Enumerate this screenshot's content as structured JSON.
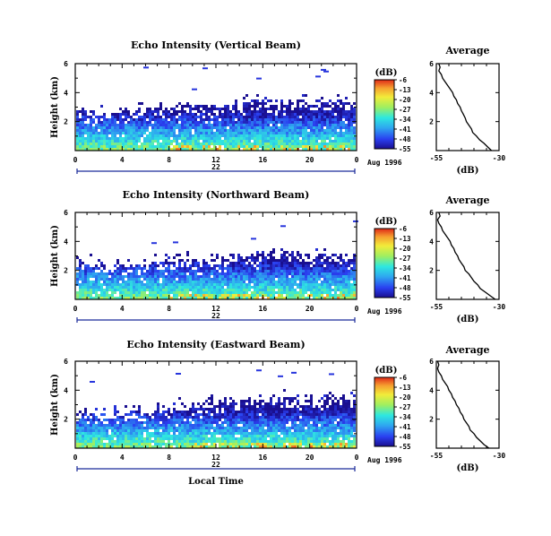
{
  "chart_data": [
    {
      "type": "heatmap",
      "title": "Echo Intensity (Vertical Beam)",
      "ylabel": "Height (km)",
      "yticks": [
        "2",
        "4",
        "6"
      ],
      "xticks": [
        "0",
        "4",
        "8",
        "12",
        "16",
        "20",
        "0"
      ],
      "xlim": [
        0,
        24
      ],
      "ylim": [
        0,
        6
      ],
      "date_label": "22",
      "month_label": "Aug 1996",
      "colorbar": {
        "unit": "(dB)",
        "ticks": [
          "-6",
          "-13",
          "-20",
          "-27",
          "-34",
          "-41",
          "-48",
          "-55"
        ],
        "range": [
          -55,
          -6
        ]
      },
      "echo_top_km": [
        3.0,
        2.9,
        2.7,
        2.6,
        2.8,
        2.9,
        3.0,
        3.1,
        3.0,
        3.1,
        3.2,
        3.3,
        3.1,
        3.0,
        3.2,
        3.3,
        3.4,
        3.3,
        3.4,
        3.5,
        3.4,
        3.3,
        3.5,
        3.4,
        3.5
      ]
    },
    {
      "type": "heatmap",
      "title": "Echo Intensity (Northward Beam)",
      "ylabel": "Height (km)",
      "yticks": [
        "2",
        "4",
        "6"
      ],
      "xticks": [
        "0",
        "4",
        "8",
        "12",
        "16",
        "20",
        "0"
      ],
      "xlim": [
        0,
        24
      ],
      "ylim": [
        0,
        6
      ],
      "date_label": "22",
      "month_label": "Aug 1996",
      "colorbar": {
        "unit": "(dB)",
        "ticks": [
          "-6",
          "-13",
          "-20",
          "-27",
          "-34",
          "-41",
          "-48",
          "-55"
        ],
        "range": [
          -55,
          -6
        ]
      },
      "echo_top_km": [
        2.8,
        2.7,
        2.6,
        2.5,
        2.4,
        2.5,
        2.6,
        2.7,
        2.8,
        2.9,
        2.8,
        2.7,
        2.9,
        3.0,
        2.9,
        3.0,
        3.1,
        3.2,
        3.3,
        3.2,
        3.1,
        3.3,
        3.2,
        3.1,
        3.2
      ]
    },
    {
      "type": "heatmap",
      "title": "Echo Intensity (Eastward Beam)",
      "ylabel": "Height (km)",
      "yticks": [
        "2",
        "4",
        "6"
      ],
      "xticks": [
        "0",
        "4",
        "8",
        "12",
        "16",
        "20",
        "0"
      ],
      "xlim": [
        0,
        24
      ],
      "ylim": [
        0,
        6
      ],
      "date_label": "22",
      "month_label": "Aug 1996",
      "xlabel": "Local Time",
      "colorbar": {
        "unit": "(dB)",
        "ticks": [
          "-6",
          "-13",
          "-20",
          "-27",
          "-34",
          "-41",
          "-48",
          "-55"
        ],
        "range": [
          -55,
          -6
        ]
      },
      "echo_top_km": [
        2.6,
        2.5,
        2.4,
        2.5,
        2.4,
        2.5,
        2.6,
        2.7,
        2.8,
        2.9,
        3.0,
        3.1,
        3.2,
        3.3,
        3.4,
        3.3,
        3.4,
        3.5,
        3.6,
        3.5,
        3.6,
        3.5,
        3.6,
        3.7,
        3.6
      ]
    },
    {
      "type": "line",
      "title": "Average",
      "xlabel": "(dB)",
      "xticks": [
        "-55",
        "-30"
      ],
      "yticks": [
        "2",
        "4",
        "6"
      ],
      "xlim": [
        -55,
        -30
      ],
      "ylim": [
        0,
        6
      ],
      "x": [
        -33.0,
        -34.5,
        -36.0,
        -37.8,
        -39.0,
        -40.5,
        -41.0,
        -42.0,
        -43.0,
        -43.5,
        -44.2,
        -45.0,
        -45.5,
        -46.5,
        -47.0,
        -48.0,
        -48.5,
        -49.5,
        -50.5,
        -51.5,
        -52.5,
        -53.0,
        -54.0,
        -53.5,
        -54.0
      ],
      "y": [
        0.0,
        0.25,
        0.5,
        0.75,
        1.0,
        1.25,
        1.5,
        1.75,
        2.0,
        2.25,
        2.5,
        2.75,
        3.0,
        3.25,
        3.5,
        3.75,
        4.0,
        4.25,
        4.5,
        4.75,
        5.0,
        5.25,
        5.5,
        5.75,
        6.0
      ]
    },
    {
      "type": "line",
      "title": "Average",
      "xlabel": "(dB)",
      "xticks": [
        "-55",
        "-30"
      ],
      "yticks": [
        "2",
        "4",
        "6"
      ],
      "xlim": [
        -55,
        -30
      ],
      "ylim": [
        0,
        6
      ],
      "x": [
        -31.5,
        -33.5,
        -35.5,
        -37.5,
        -38.5,
        -40.0,
        -41.0,
        -42.0,
        -43.5,
        -44.0,
        -45.0,
        -46.0,
        -46.5,
        -47.5,
        -48.0,
        -49.0,
        -49.5,
        -50.5,
        -51.5,
        -52.5,
        -53.0,
        -54.0,
        -54.5,
        -53.5,
        -54.0
      ],
      "y": [
        0.0,
        0.25,
        0.5,
        0.75,
        1.0,
        1.25,
        1.5,
        1.75,
        2.0,
        2.25,
        2.5,
        2.75,
        3.0,
        3.25,
        3.5,
        3.75,
        4.0,
        4.25,
        4.5,
        4.75,
        5.0,
        5.25,
        5.5,
        5.75,
        6.0
      ]
    },
    {
      "type": "line",
      "title": "Average",
      "xlabel": "(dB)",
      "xticks": [
        "-55",
        "-30"
      ],
      "yticks": [
        "2",
        "4",
        "6"
      ],
      "xlim": [
        -55,
        -30
      ],
      "ylim": [
        0,
        6
      ],
      "x": [
        -34.0,
        -36.0,
        -37.5,
        -39.0,
        -40.0,
        -41.5,
        -42.0,
        -43.0,
        -44.0,
        -44.5,
        -45.5,
        -46.0,
        -47.0,
        -47.5,
        -48.5,
        -49.0,
        -50.0,
        -50.5,
        -51.5,
        -52.5,
        -53.0,
        -54.0,
        -54.5,
        -54.0,
        -54.5
      ],
      "y": [
        0.0,
        0.25,
        0.5,
        0.75,
        1.0,
        1.25,
        1.5,
        1.75,
        2.0,
        2.25,
        2.5,
        2.75,
        3.0,
        3.25,
        3.5,
        3.75,
        4.0,
        4.25,
        4.5,
        4.75,
        5.0,
        5.25,
        5.5,
        5.75,
        6.0
      ]
    }
  ]
}
